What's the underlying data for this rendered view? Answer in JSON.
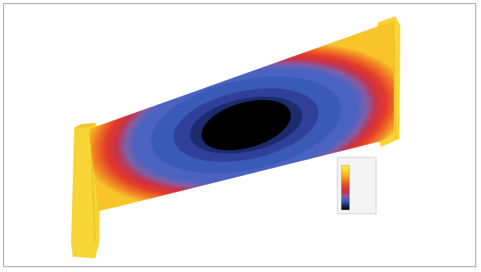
{
  "figure": {
    "frame_color": "#9a9a9a",
    "background": "#ffffff"
  },
  "colormap": {
    "stops": [
      "#000000",
      "#1c2a6e",
      "#2f3f9a",
      "#3a5ab8",
      "#4a72c8",
      "#7d6fb0",
      "#c8314a",
      "#e23a2a",
      "#f07a22",
      "#f7c52a",
      "#faf03a"
    ]
  },
  "legend": {
    "title": "",
    "ticks": []
  }
}
